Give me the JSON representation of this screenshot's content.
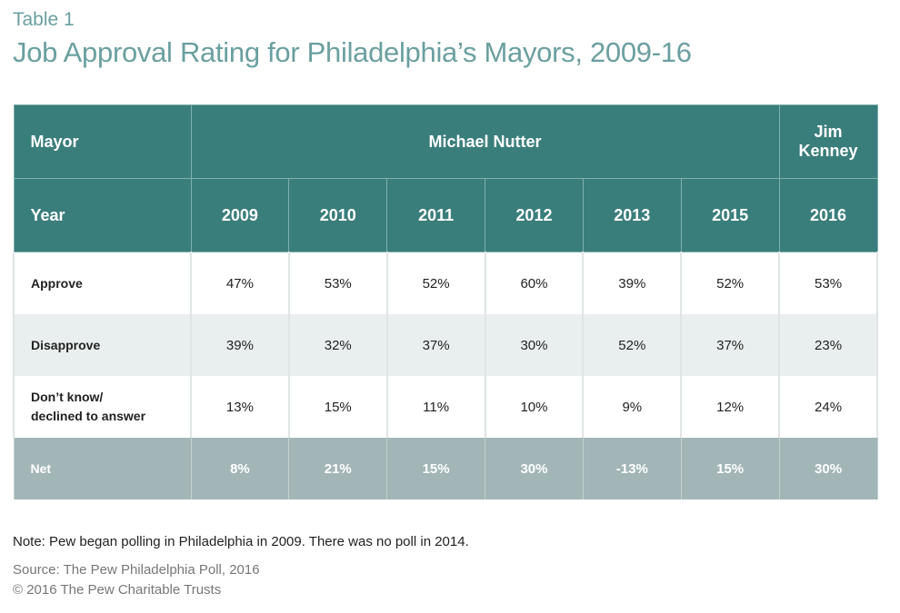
{
  "header": {
    "label": "Table 1",
    "title": "Job Approval Rating for Philadelphia’s Mayors, 2009-16"
  },
  "table": {
    "mayor_label": "Mayor",
    "year_label": "Year",
    "mayors": [
      {
        "name": "Michael Nutter",
        "years": [
          "2009",
          "2010",
          "2011",
          "2012",
          "2013",
          "2015"
        ]
      },
      {
        "name": "Jim\nKenney",
        "years": [
          "2016"
        ]
      }
    ],
    "rows": [
      {
        "label": "Approve",
        "cells": [
          "47%",
          "53%",
          "52%",
          "60%",
          "39%",
          "52%",
          "53%"
        ]
      },
      {
        "label": "Disapprove",
        "cells": [
          "39%",
          "32%",
          "37%",
          "30%",
          "52%",
          "37%",
          "23%"
        ]
      },
      {
        "label": "Don’t know/\ndeclined to answer",
        "cells": [
          "13%",
          "15%",
          "11%",
          "10%",
          "9%",
          "12%",
          "24%"
        ]
      },
      {
        "label": "Net",
        "cells": [
          "8%",
          "21%",
          "15%",
          "30%",
          "-13%",
          "15%",
          "30%"
        ]
      }
    ]
  },
  "footer": {
    "note": "Note: Pew began polling in Philadelphia in 2009. There was no poll in 2014.",
    "source": "Source: The Pew Philadelphia Poll, 2016",
    "copyright": "© 2016 The Pew Charitable Trusts"
  }
}
